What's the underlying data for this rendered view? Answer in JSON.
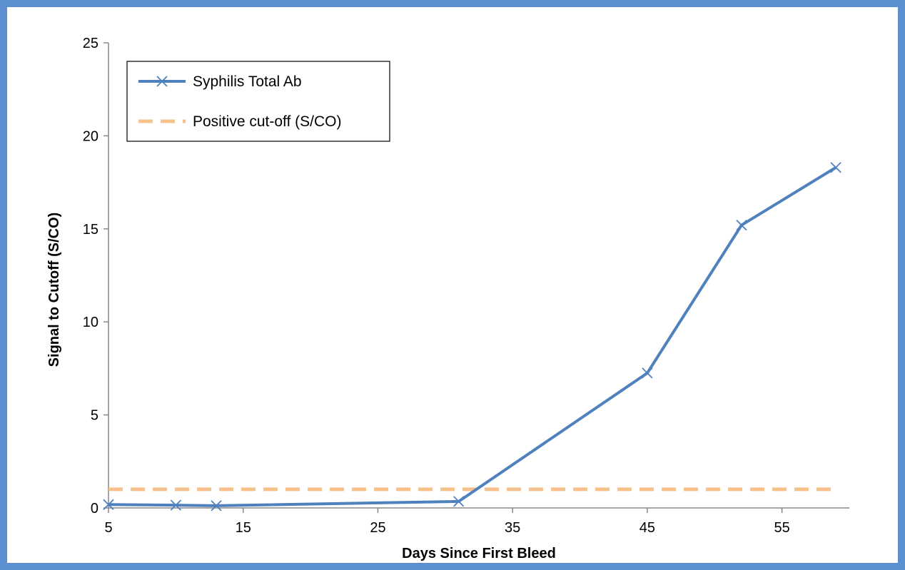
{
  "chart_data": {
    "type": "line",
    "title": "",
    "xlabel": "Days Since First Bleed",
    "ylabel": "Signal to Cutoff (S/CO)",
    "xlim": [
      5,
      60
    ],
    "ylim": [
      0,
      25
    ],
    "xticks": [
      5,
      15,
      25,
      35,
      45,
      55
    ],
    "yticks": [
      0,
      5,
      10,
      15,
      20,
      25
    ],
    "grid": false,
    "legend_position": "top-left",
    "series": [
      {
        "name": "Syphilis Total Ab",
        "color": "#4f81bd",
        "style": "solid",
        "marker": "x",
        "x": [
          5,
          10,
          13,
          31,
          45,
          52,
          59
        ],
        "y": [
          0.18,
          0.15,
          0.12,
          0.35,
          7.25,
          15.2,
          18.3
        ]
      },
      {
        "name": "Positive cut-off (S/CO)",
        "color": "#f8c08a",
        "style": "dashed",
        "marker": "none",
        "x": [
          5,
          59
        ],
        "y": [
          1,
          1
        ]
      }
    ]
  }
}
